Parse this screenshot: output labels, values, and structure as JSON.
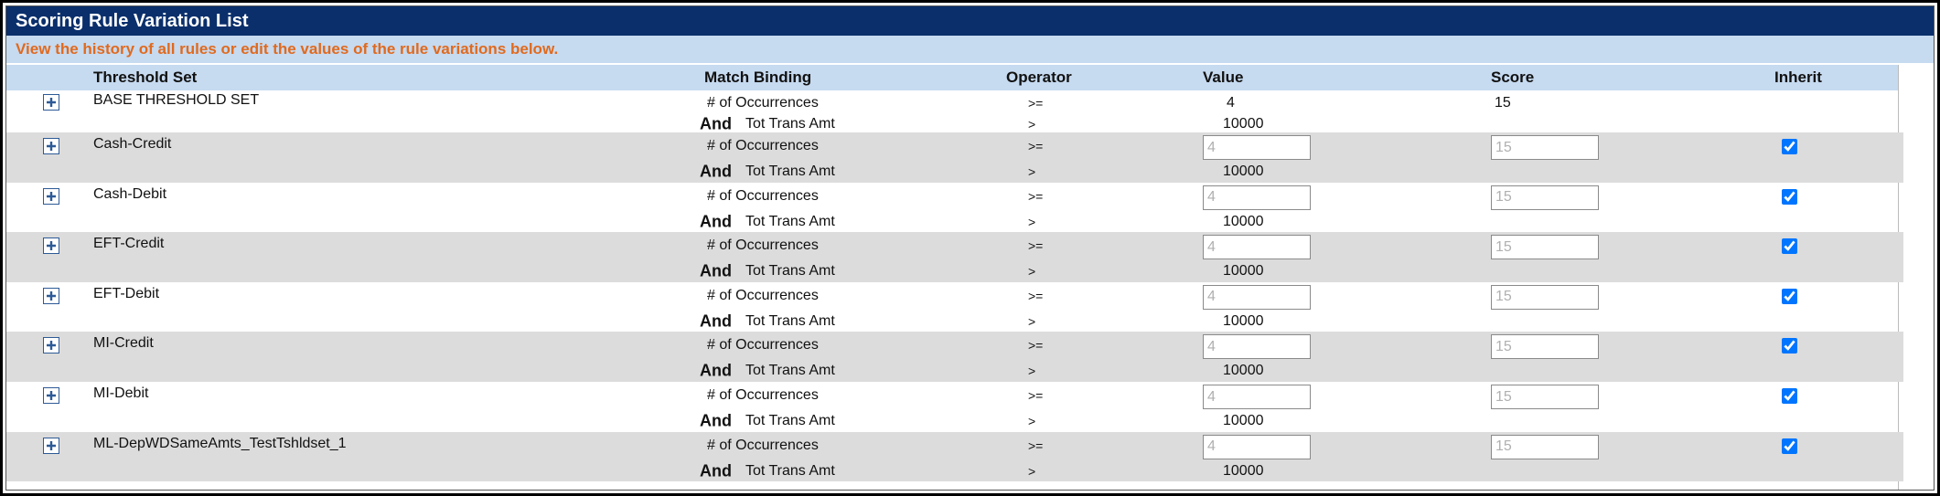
{
  "header": {
    "title": "Scoring Rule Variation List",
    "subtitle": "View the history of all rules or edit the values of the rule variations below."
  },
  "table": {
    "columns": [
      "Threshold Set",
      "Match Binding",
      "Operator",
      "Value",
      "Score",
      "Inherit"
    ],
    "rows": [
      {
        "name": "BASE THRESHOLD SET",
        "conditions": [
          {
            "binding": "# of Occurrences",
            "operator": ">=",
            "value": 4
          },
          {
            "conjunction": "And",
            "binding": "Tot Trans Amt",
            "operator": ">",
            "value": 10000
          }
        ],
        "score": 15
      },
      {
        "name": "Cash-Credit",
        "conditions": [
          {
            "binding": "# of Occurrences",
            "operator": ">=",
            "value": 4
          },
          {
            "conjunction": "And",
            "binding": "Tot Trans Amt",
            "operator": ">",
            "value": 10000
          }
        ],
        "score": 15,
        "inherit": true
      },
      {
        "name": "Cash-Debit",
        "conditions": [
          {
            "binding": "# of Occurrences",
            "operator": ">=",
            "value": 4
          },
          {
            "conjunction": "And",
            "binding": "Tot Trans Amt",
            "operator": ">",
            "value": 10000
          }
        ],
        "score": 15,
        "inherit": true
      },
      {
        "name": "EFT-Credit",
        "conditions": [
          {
            "binding": "# of Occurrences",
            "operator": ">=",
            "value": 4
          },
          {
            "conjunction": "And",
            "binding": "Tot Trans Amt",
            "operator": ">",
            "value": 10000
          }
        ],
        "score": 15,
        "inherit": true
      },
      {
        "name": "EFT-Debit",
        "conditions": [
          {
            "binding": "# of Occurrences",
            "operator": ">=",
            "value": 4
          },
          {
            "conjunction": "And",
            "binding": "Tot Trans Amt",
            "operator": ">",
            "value": 10000
          }
        ],
        "score": 15,
        "inherit": true
      },
      {
        "name": "MI-Credit",
        "conditions": [
          {
            "binding": "# of Occurrences",
            "operator": ">=",
            "value": 4
          },
          {
            "conjunction": "And",
            "binding": "Tot Trans Amt",
            "operator": ">",
            "value": 10000
          }
        ],
        "score": 15,
        "inherit": true
      },
      {
        "name": "MI-Debit",
        "conditions": [
          {
            "binding": "# of Occurrences",
            "operator": ">=",
            "value": 4
          },
          {
            "conjunction": "And",
            "binding": "Tot Trans Amt",
            "operator": ">",
            "value": 10000
          }
        ],
        "score": 15,
        "inherit": true
      },
      {
        "name": "ML-DepWDSameAmts_TestTshldset_1",
        "conditions": [
          {
            "binding": "# of Occurrences",
            "operator": ">=",
            "value": 4
          },
          {
            "conjunction": "And",
            "binding": "Tot Trans Amt",
            "operator": ">",
            "value": 10000
          }
        ],
        "score": 15,
        "inherit": true
      }
    ]
  }
}
